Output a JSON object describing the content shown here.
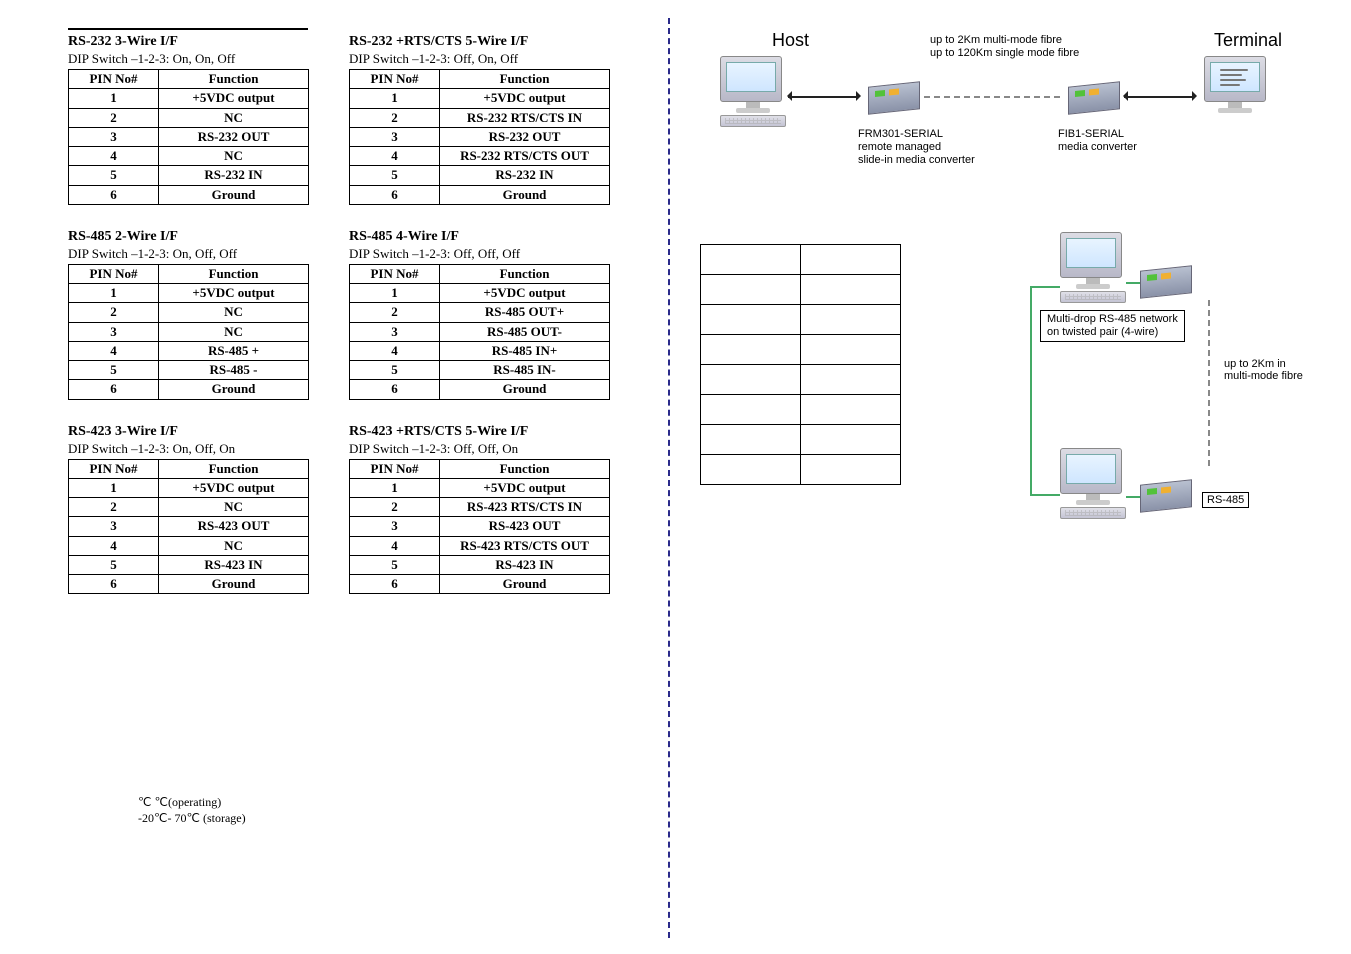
{
  "sections": [
    {
      "left": {
        "title": "RS-232 3-Wire I/F",
        "sub": "DIP Switch –1-2-3: On, On, Off",
        "col_func_class": "col-func",
        "headers": [
          "PIN No#",
          "Function"
        ],
        "rows": [
          [
            "1",
            "+5VDC output"
          ],
          [
            "2",
            "NC"
          ],
          [
            "3",
            "RS-232 OUT"
          ],
          [
            "4",
            "NC"
          ],
          [
            "5",
            "RS-232 IN"
          ],
          [
            "6",
            "Ground"
          ]
        ]
      },
      "right": {
        "title": "RS-232 +RTS/CTS 5-Wire I/F",
        "sub": "DIP Switch –1-2-3: Off, On, Off",
        "col_func_class": "col-func-wide",
        "headers": [
          "PIN No#",
          "Function"
        ],
        "rows": [
          [
            "1",
            "+5VDC output"
          ],
          [
            "2",
            "RS-232 RTS/CTS IN"
          ],
          [
            "3",
            "RS-232 OUT"
          ],
          [
            "4",
            "RS-232 RTS/CTS OUT"
          ],
          [
            "5",
            "RS-232 IN"
          ],
          [
            "6",
            "Ground"
          ]
        ]
      }
    },
    {
      "left": {
        "title": "RS-485 2-Wire I/F",
        "sub": "DIP Switch –1-2-3: On, Off, Off",
        "col_func_class": "col-func",
        "headers": [
          "PIN No#",
          "Function"
        ],
        "rows": [
          [
            "1",
            "+5VDC output"
          ],
          [
            "2",
            "NC"
          ],
          [
            "3",
            "NC"
          ],
          [
            "4",
            "RS-485 +"
          ],
          [
            "5",
            "RS-485 -"
          ],
          [
            "6",
            "Ground"
          ]
        ]
      },
      "right": {
        "title": "RS-485 4-Wire I/F",
        "sub": "DIP Switch –1-2-3: Off, Off, Off",
        "col_func_class": "col-func-wide",
        "headers": [
          "PIN No#",
          "Function"
        ],
        "rows": [
          [
            "1",
            "+5VDC output"
          ],
          [
            "2",
            "RS-485 OUT+"
          ],
          [
            "3",
            "RS-485 OUT-"
          ],
          [
            "4",
            "RS-485    IN+"
          ],
          [
            "5",
            "RS-485    IN-"
          ],
          [
            "6",
            "Ground"
          ]
        ]
      }
    },
    {
      "left": {
        "title": "RS-423 3-Wire I/F",
        "sub": "DIP Switch –1-2-3: On, Off, On",
        "col_func_class": "col-func",
        "headers": [
          "PIN No#",
          "Function"
        ],
        "rows": [
          [
            "1",
            "+5VDC output"
          ],
          [
            "2",
            "NC"
          ],
          [
            "3",
            "RS-423 OUT"
          ],
          [
            "4",
            "NC"
          ],
          [
            "5",
            "RS-423 IN"
          ],
          [
            "6",
            "Ground"
          ]
        ]
      },
      "right": {
        "title": "RS-423 +RTS/CTS 5-Wire I/F",
        "sub": "DIP Switch –1-2-3: Off, Off, On",
        "col_func_class": "col-func-wide",
        "headers": [
          "PIN No#",
          "Function"
        ],
        "rows": [
          [
            "1",
            "+5VDC output"
          ],
          [
            "2",
            "RS-423 RTS/CTS IN"
          ],
          [
            "3",
            "RS-423 OUT"
          ],
          [
            "4",
            "RS-423 RTS/CTS OUT"
          ],
          [
            "5",
            "RS-423 IN"
          ],
          [
            "6",
            "Ground"
          ]
        ]
      }
    }
  ],
  "temperature": {
    "line1": "℃      ℃(operating)",
    "line2": "-20℃- 70℃ (storage)"
  },
  "diagram_top": {
    "host_label": "Host",
    "terminal_label": "Terminal",
    "fibre_note_1": "up to 2Km multi-mode fibre",
    "fibre_note_2": "up to 120Km single mode fibre",
    "dev1_line1": "FRM301-SERIAL",
    "dev1_line2": "remote managed",
    "dev1_line3": "slide-in media converter",
    "dev2_line1": "FIB1-SERIAL",
    "dev2_line2": "media converter"
  },
  "diagram_bottom": {
    "blank_rows": 8,
    "box_line1": "Multi-drop RS-485 network",
    "box_line2": "on twisted pair (4-wire)",
    "fibre_note_1": "up to 2Km in",
    "fibre_note_2": "multi-mode fibre",
    "rs485_label": "RS-485"
  }
}
